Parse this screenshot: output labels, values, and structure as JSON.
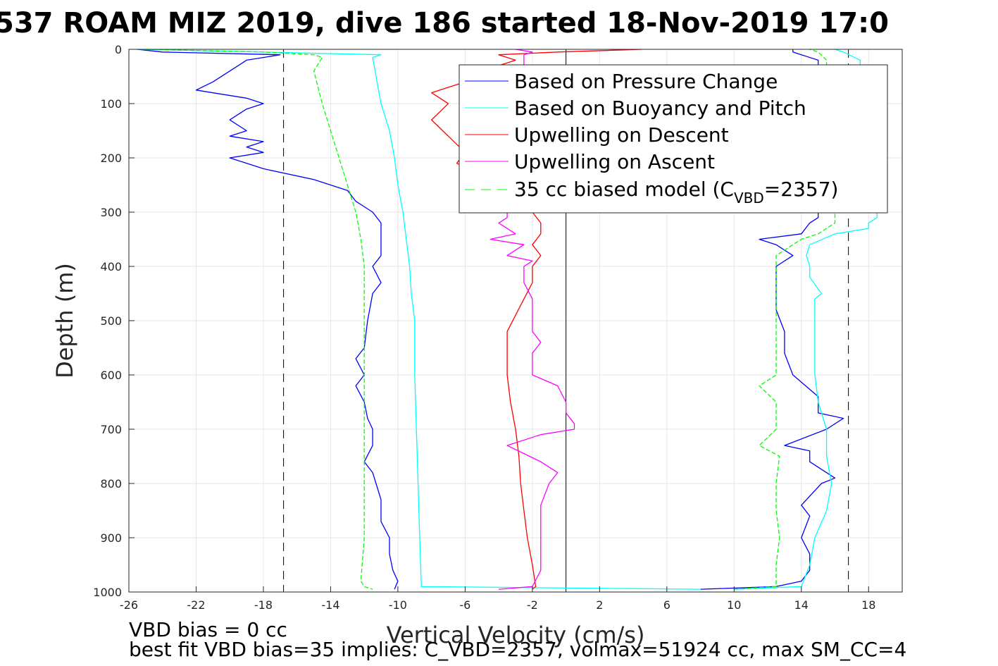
{
  "chart_data": {
    "type": "line",
    "title": "537 ROAM MIZ 2019, dive 186 started 18-Nov-2019 17:0",
    "xlabel": "Vertical Velocity (cm/s)",
    "ylabel": "Depth (m)",
    "xlim": [
      -26,
      20
    ],
    "ylim": [
      1000,
      0
    ],
    "y_reversed": true,
    "grid": true,
    "x_ticks": [
      -26,
      -22,
      -18,
      -14,
      -10,
      -6,
      -2,
      2,
      6,
      10,
      14,
      18
    ],
    "y_ticks": [
      0,
      100,
      200,
      300,
      400,
      500,
      600,
      700,
      800,
      900,
      1000
    ],
    "reference_lines": {
      "solid_vertical_x": 0,
      "dashed_vertical_x": [
        -16.8,
        16.8
      ]
    },
    "legend_position": "top-right",
    "legend": {
      "pressure": "Based on Pressure Change",
      "buoyancy": "Based on Buoyancy and Pitch",
      "upwelling_descent": "Upwelling on Descent",
      "upwelling_ascent": "Upwelling on Ascent",
      "model_prefix": "35 cc biased model (C",
      "model_sub": "VBD",
      "model_suffix": "=2357)"
    },
    "series": [
      {
        "key": "pressure",
        "name": "Based on Pressure Change",
        "color": "#0000ff",
        "segments": [
          {
            "depth": [
              0,
              5,
              10,
              20,
              40,
              60,
              75,
              90,
              100,
              110,
              130,
              150,
              160,
              170,
              180,
              190,
              200,
              220,
              240,
              260,
              280,
              300,
              320,
              340,
              360,
              380,
              400,
              430,
              450,
              500,
              550,
              570,
              600,
              620,
              650,
              680,
              700,
              730,
              760,
              780,
              800,
              830,
              850,
              870,
              900,
              930,
              960,
              980,
              995
            ],
            "x": [
              -25.5,
              -24,
              -17,
              -19,
              -20,
              -21,
              -22,
              -19,
              -18,
              -19,
              -20,
              -19,
              -20,
              -18,
              -19,
              -18,
              -20,
              -18,
              -15,
              -13,
              -12.5,
              -11.5,
              -11,
              -11,
              -11,
              -11,
              -11.5,
              -11,
              -11.5,
              -11.8,
              -12,
              -12.5,
              -12,
              -12.5,
              -12,
              -11.8,
              -11.5,
              -11.5,
              -12,
              -11.5,
              -11.3,
              -11,
              -11,
              -11,
              -10.5,
              -10.5,
              -10.3,
              -10,
              -10.2
            ]
          },
          {
            "depth": [
              995,
              990,
              980,
              960,
              930,
              900,
              860,
              840,
              800,
              790,
              760,
              740,
              730,
              700,
              680,
              670,
              640,
              600,
              560,
              520,
              480,
              450,
              420,
              400,
              380,
              370,
              360,
              350,
              340,
              320,
              310,
              300,
              250,
              150,
              50,
              20,
              10,
              5,
              0
            ],
            "x": [
              8,
              12.5,
              14,
              14.5,
              14.5,
              14,
              14.5,
              14,
              15.2,
              16,
              14.5,
              14.5,
              13,
              15.5,
              16.5,
              15,
              15,
              13.5,
              13,
              13,
              12.5,
              12.5,
              12.5,
              12.5,
              13.5,
              13,
              12.5,
              11.5,
              14,
              14.5,
              15,
              15,
              15,
              15,
              15,
              15,
              14,
              13.5,
              13.5
            ]
          }
        ]
      },
      {
        "key": "buoyancy",
        "name": "Based on Buoyancy and Pitch",
        "color": "#00ffff",
        "segments": [
          {
            "depth": [
              0,
              5,
              10,
              15,
              50,
              100,
              150,
              200,
              250,
              300,
              350,
              400,
              450,
              500,
              600,
              700,
              800,
              900,
              990,
              995
            ],
            "x": [
              -25.5,
              -18,
              -11,
              -11.5,
              -11.3,
              -11,
              -10.5,
              -10.2,
              -10,
              -9.7,
              -9.5,
              -9.3,
              -9.2,
              -9.0,
              -9.0,
              -8.9,
              -8.8,
              -8.7,
              -8.6,
              8
            ]
          },
          {
            "depth": [
              995,
              990,
              950,
              900,
              850,
              800,
              750,
              700,
              650,
              600,
              550,
              500,
              460,
              450,
              420,
              400,
              380,
              360,
              340,
              330,
              320,
              310,
              300,
              250,
              150,
              50,
              20,
              5,
              0
            ],
            "x": [
              10,
              14,
              14.5,
              14.8,
              15.5,
              15.8,
              15.5,
              15.5,
              15,
              14.8,
              14.8,
              14.8,
              14.8,
              15.2,
              14.5,
              14.5,
              14.3,
              14.5,
              16,
              18,
              18,
              18.5,
              18.5,
              17.5,
              17.5,
              17.5,
              17.5,
              16.5,
              16
            ]
          }
        ]
      },
      {
        "key": "upwelling_descent",
        "name": "Upwelling on Descent",
        "color": "#ff0000",
        "segments": [
          {
            "depth": [
              0,
              5,
              10,
              20,
              40,
              60,
              80,
              100,
              130,
              160,
              190,
              210,
              230,
              260,
              300,
              320,
              340,
              360,
              380,
              400,
              430,
              460,
              490,
              520,
              560,
              600,
              650,
              700,
              750,
              800,
              850,
              900,
              950,
              990,
              995
            ],
            "x": [
              4.5,
              -0.5,
              -4,
              -3,
              -5,
              -6,
              -8,
              -7,
              -8,
              -7,
              -6,
              -6.5,
              -5,
              -4,
              -2,
              -1.5,
              -1.5,
              -2,
              -1.5,
              -2,
              -2,
              -2.5,
              -3,
              -3.5,
              -3.5,
              -3.5,
              -3.3,
              -3,
              -2.8,
              -2.7,
              -2.5,
              -2.3,
              -2,
              -1.8,
              -2
            ]
          }
        ]
      },
      {
        "key": "upwelling_ascent",
        "name": "Upwelling on Ascent",
        "color": "#ff00ff",
        "segments": [
          {
            "depth": [
              995,
              990,
              960,
              930,
              900,
              870,
              840,
              800,
              780,
              760,
              730,
              710,
              700,
              690,
              670,
              650,
              620,
              600,
              580,
              560,
              540,
              520,
              500,
              460,
              430,
              400,
              390,
              380,
              360,
              350,
              340,
              320,
              310,
              300,
              250,
              200,
              150,
              100,
              50,
              20,
              10,
              5,
              0
            ],
            "x": [
              -4,
              -2,
              -1.5,
              -1.5,
              -1.5,
              -1.5,
              -1.5,
              -1,
              -0.5,
              -1.5,
              -3.5,
              -1.5,
              0.5,
              0.5,
              0,
              0,
              -0.5,
              -2,
              -2,
              -2,
              -1.5,
              -2,
              -2,
              -2,
              -2.5,
              -2.5,
              -2,
              -3.5,
              -2.5,
              -4.5,
              -3,
              -4,
              -3.5,
              -3.5,
              -3,
              -3,
              -3,
              -2.5,
              -2.5,
              -2.5,
              -2.5,
              -2,
              -3
            ]
          }
        ]
      },
      {
        "key": "model",
        "name": "35 cc biased model (CVBD=2357)",
        "color": "#00ff00",
        "dashed": true,
        "segments": [
          {
            "depth": [
              0,
              5,
              10,
              15,
              40,
              100,
              150,
              200,
              250,
              300,
              350,
              400,
              450,
              500,
              550,
              600,
              700,
              800,
              900,
              980,
              990,
              995
            ],
            "x": [
              -25,
              -18,
              -15,
              -14.5,
              -15,
              -14.5,
              -14,
              -13.5,
              -13,
              -12.5,
              -12.2,
              -12,
              -12,
              -12,
              -12,
              -12,
              -12,
              -12,
              -12,
              -12.2,
              -12,
              -11.5
            ]
          },
          {
            "depth": [
              995,
              990,
              980,
              950,
              900,
              850,
              800,
              750,
              730,
              700,
              650,
              620,
              600,
              550,
              500,
              450,
              400,
              380,
              360,
              350,
              340,
              330,
              320,
              310,
              300,
              200,
              100,
              20,
              5,
              0
            ],
            "x": [
              10,
              12.5,
              12.5,
              12.5,
              12.7,
              12.5,
              12.5,
              12.7,
              11.5,
              12.5,
              12.5,
              11.5,
              12.5,
              12.5,
              12.5,
              12.5,
              12.5,
              12.5,
              13.5,
              14,
              15,
              15.5,
              16,
              16,
              16,
              15.5,
              15.5,
              15.5,
              15,
              14.5
            ]
          }
        ]
      }
    ]
  },
  "notes": {
    "bias": "VBD bias = 0 cc",
    "best_fit": "best fit VBD bias=35 implies: C_VBD=2357, volmax=51924 cc, max SM_CC=4"
  }
}
